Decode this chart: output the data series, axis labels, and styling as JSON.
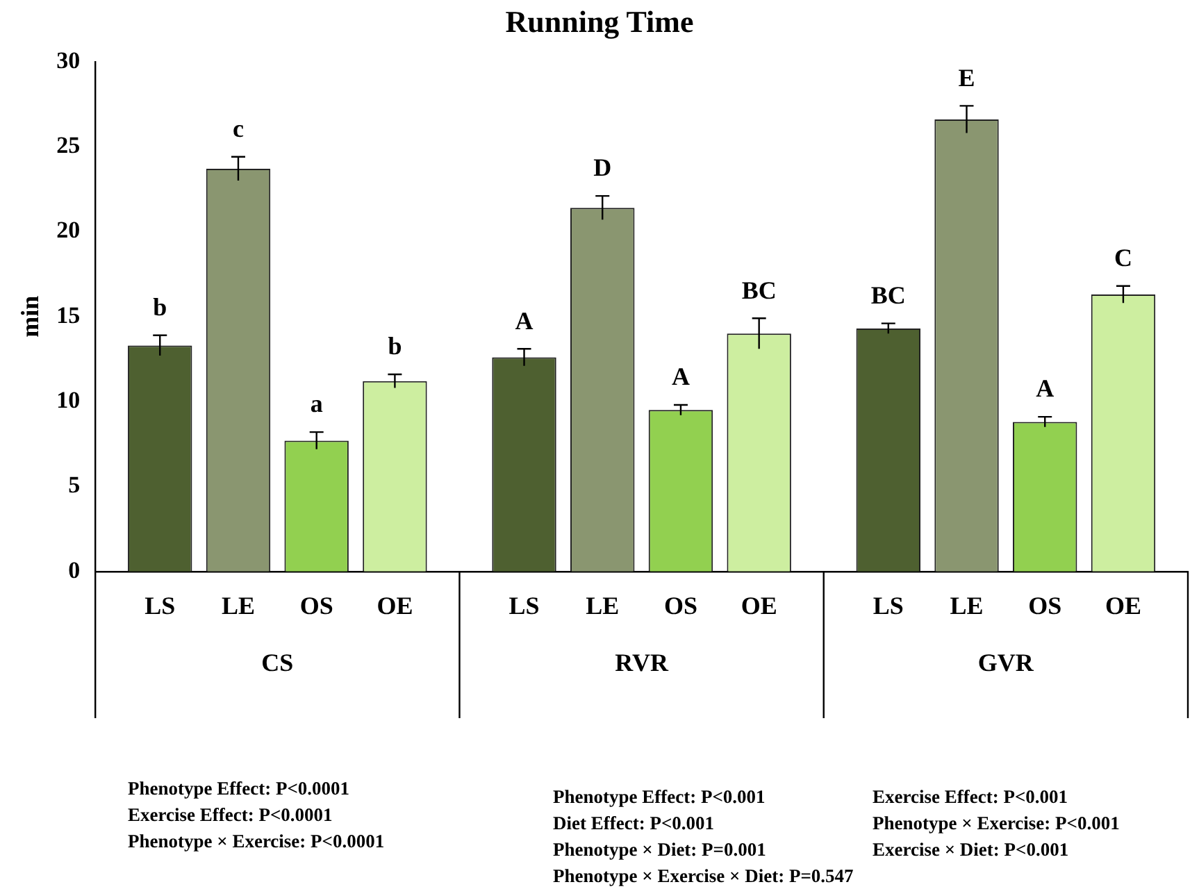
{
  "chart_data": {
    "type": "bar",
    "title": "Running Time",
    "ylabel": "min",
    "categories": [
      "CS",
      "RVR",
      "GVR"
    ],
    "series": [
      {
        "name": "LS",
        "color": "#4e6030",
        "values": [
          13.3,
          12.6,
          14.3
        ],
        "errors": [
          0.6,
          0.5,
          0.3
        ],
        "value_labels": [
          "b",
          "A",
          "BC"
        ]
      },
      {
        "name": "LE",
        "color": "#8a9670",
        "values": [
          23.7,
          21.4,
          26.6
        ],
        "errors": [
          0.7,
          0.7,
          0.8
        ],
        "value_labels": [
          "c",
          "D",
          "E"
        ]
      },
      {
        "name": "OS",
        "color": "#92d050",
        "values": [
          7.7,
          9.5,
          8.8
        ],
        "errors": [
          0.5,
          0.3,
          0.3
        ],
        "value_labels": [
          "a",
          "A",
          "A"
        ]
      },
      {
        "name": "OE",
        "color": "#cdeea0",
        "values": [
          11.2,
          14.0,
          16.3
        ],
        "errors": [
          0.4,
          0.9,
          0.5
        ],
        "value_labels": [
          "b",
          "BC",
          "C"
        ]
      }
    ],
    "ylim": [
      0,
      30
    ],
    "yticks": [
      0,
      5,
      10,
      15,
      20,
      25,
      30
    ],
    "grid": false,
    "legend": false,
    "annotations": [
      "Phenotype Effect: P<0.0001",
      "Exercise Effect: P<0.0001",
      "Phenotype × Exercise: P<0.0001",
      "Phenotype Effect:  P<0.001",
      "Diet Effect:  P<0.001",
      "Phenotype × Diet: P=0.001",
      "Phenotype × Exercise × Diet: P=0.547",
      "Exercise Effect: P<0.001",
      "Phenotype × Exercise: P<0.001",
      "Exercise × Diet:  P<0.001"
    ]
  }
}
